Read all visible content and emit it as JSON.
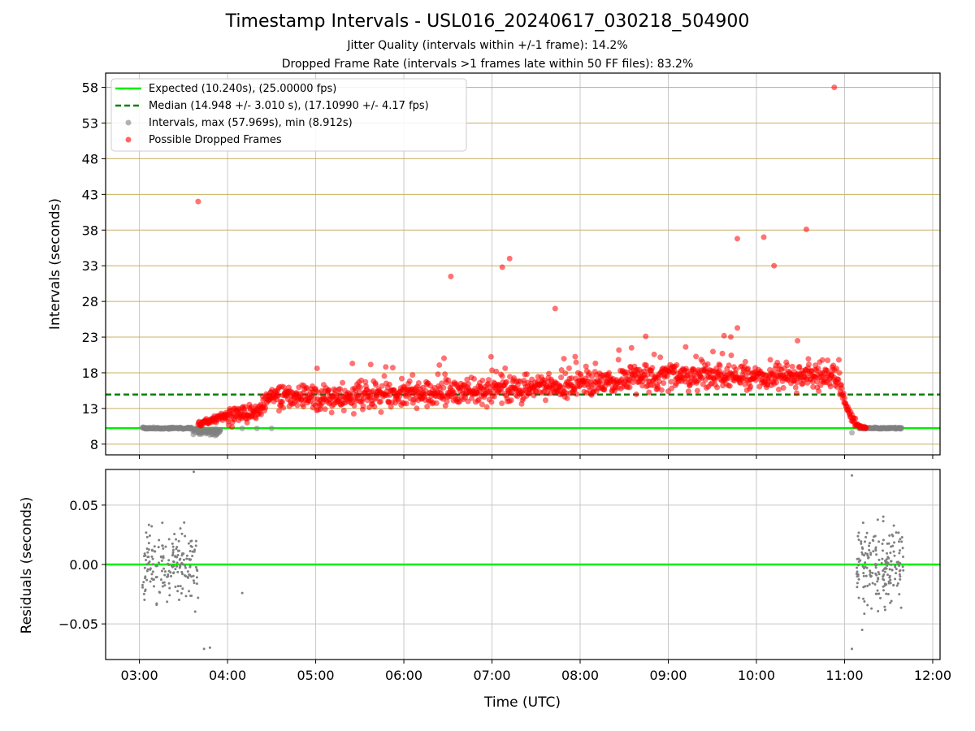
{
  "title": "Timestamp Intervals - USL016_20240617_030218_504900",
  "subtitle_1": "Jitter Quality (intervals within +/-1 frame): 14.2%",
  "subtitle_2": "Dropped Frame Rate (intervals >1 frames late within 50 FF files): 83.2%",
  "colors": {
    "expected": "#00ee00",
    "median": "#008000",
    "intervals": "#808080",
    "dropped": "#ff0000",
    "hgrid_top": "#c8b060",
    "grid": "#c8c8c8"
  },
  "chart_data": [
    {
      "type": "scatter",
      "xlabel": "",
      "ylabel": "Intervals (seconds)",
      "xlim": [
        "02:37",
        "12:05"
      ],
      "ylim": [
        6.5,
        60
      ],
      "yticks": [
        "8",
        "13",
        "18",
        "23",
        "28",
        "33",
        "38",
        "43",
        "48",
        "53",
        "58"
      ],
      "grid": true,
      "legend_position": "top-left",
      "legend": [
        "Expected (10.240s), (25.00000 fps)",
        "Median (14.948 +/- 3.010 s), (17.10990 +/- 4.17 fps)",
        "Intervals, max (57.969s), min (8.912s)",
        "Possible Dropped Frames"
      ],
      "expected_line": 10.24,
      "median_line": 14.948,
      "series": [
        {
          "name": "Intervals, max (57.969s), min (8.912s)",
          "x_range": [
            "03:02",
            "11:39"
          ],
          "points": [
            [
              "03:05",
              10.2
            ],
            [
              "03:12",
              10.2
            ],
            [
              "03:20",
              10.1
            ],
            [
              "03:28",
              10.3
            ],
            [
              "03:35",
              10.2
            ],
            [
              "03:42",
              9.7
            ],
            [
              "03:48",
              9.3
            ],
            [
              "03:55",
              10.0
            ],
            [
              "04:10",
              10.2
            ],
            [
              "04:20",
              10.2
            ],
            [
              "04:30",
              10.2
            ],
            [
              "11:05",
              9.6
            ],
            [
              "11:10",
              10.2
            ],
            [
              "11:20",
              10.2
            ],
            [
              "11:30",
              10.2
            ],
            [
              "11:38",
              10.2
            ]
          ]
        },
        {
          "name": "Possible Dropped Frames",
          "trend": [
            [
              "03:40",
              10.8
            ],
            [
              "04:00",
              12.0
            ],
            [
              "04:20",
              12.5
            ],
            [
              "04:30",
              15.0
            ],
            [
              "05:00",
              14.5
            ],
            [
              "06:00",
              15.0
            ],
            [
              "07:00",
              15.5
            ],
            [
              "08:00",
              16.5
            ],
            [
              "09:00",
              17.5
            ],
            [
              "10:00",
              17.5
            ],
            [
              "10:55",
              17.5
            ],
            [
              "11:00",
              14.0
            ],
            [
              "11:05",
              11.5
            ],
            [
              "11:10",
              10.4
            ],
            [
              "11:15",
              10.3
            ]
          ],
          "outliers": [
            [
              "03:40",
              42.0
            ],
            [
              "06:32",
              31.5
            ],
            [
              "07:07",
              32.8
            ],
            [
              "07:12",
              34.0
            ],
            [
              "07:43",
              27.0
            ],
            [
              "08:35",
              21.5
            ],
            [
              "09:38",
              23.2
            ],
            [
              "09:47",
              36.8
            ],
            [
              "10:05",
              37.0
            ],
            [
              "10:12",
              33.0
            ],
            [
              "10:28",
              22.5
            ],
            [
              "10:34",
              38.1
            ],
            [
              "10:53",
              58.0
            ]
          ]
        }
      ]
    },
    {
      "type": "scatter",
      "xlabel": "Time (UTC)",
      "ylabel": "Residuals (seconds)",
      "xlim": [
        "02:37",
        "12:05"
      ],
      "ylim": [
        -0.08,
        0.08
      ],
      "xticks": [
        "03:00",
        "04:00",
        "05:00",
        "06:00",
        "07:00",
        "08:00",
        "09:00",
        "10:00",
        "11:00",
        "12:00"
      ],
      "yticks": [
        "0.05",
        "0.00",
        "−0.05"
      ],
      "grid": true,
      "zero_line": 0.0,
      "clusters": [
        {
          "x_range": [
            "03:02",
            "03:40"
          ],
          "y_range": [
            -0.06,
            0.07
          ]
        },
        {
          "x_range": [
            "11:08",
            "11:40"
          ],
          "y_range": [
            -0.06,
            0.07
          ]
        }
      ],
      "points": [
        [
          "03:37",
          0.078
        ],
        [
          "03:44",
          -0.071
        ],
        [
          "03:48",
          -0.07
        ],
        [
          "04:10",
          -0.024
        ],
        [
          "11:05",
          -0.071
        ],
        [
          "11:12",
          -0.055
        ],
        [
          "11:05",
          0.075
        ]
      ]
    }
  ]
}
